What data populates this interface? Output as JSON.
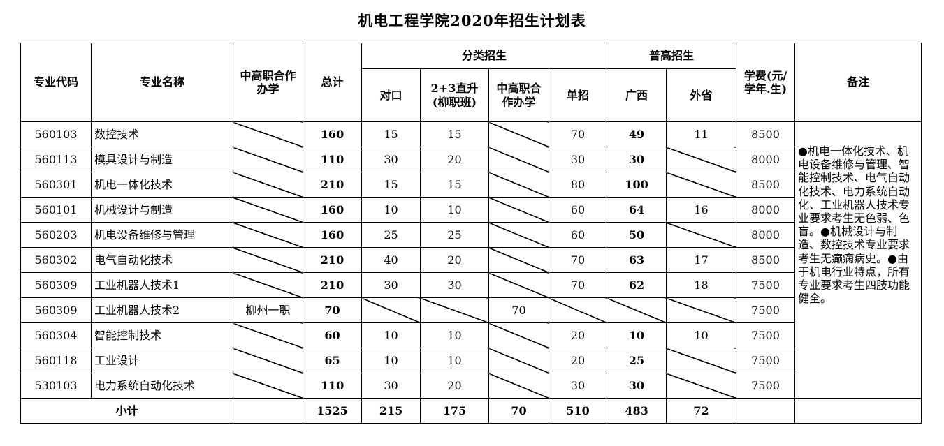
{
  "title": "机电工程学院2020年招生计划表",
  "headers": {
    "code": "专业代码",
    "name": "专业名称",
    "coop": "中高职合作办学",
    "total": "总计",
    "category_group": "分类招生",
    "duikou": "对口",
    "zhisheng_line1": "2+3直升",
    "zhisheng_line2": "(柳职班)",
    "coop_sub": "中高职合作办学",
    "danzhao": "单招",
    "general_group": "普高招生",
    "guangxi": "广西",
    "waisheng": "外省",
    "fee": "学费(元/学年.生)",
    "remarks": "备注"
  },
  "rows": [
    {
      "code": "560103",
      "name": "数控技术",
      "coop": "",
      "total": "160",
      "duikou": "15",
      "zhisheng": "15",
      "coop_sub": "",
      "danzhao": "70",
      "guangxi": "49",
      "waisheng": "11",
      "fee": "8500"
    },
    {
      "code": "560113",
      "name": "模具设计与制造",
      "coop": "",
      "total": "110",
      "duikou": "30",
      "zhisheng": "20",
      "coop_sub": "",
      "danzhao": "30",
      "guangxi": "30",
      "waisheng": "",
      "fee": "8000"
    },
    {
      "code": "560301",
      "name": "机电一体化技术",
      "coop": "",
      "total": "210",
      "duikou": "15",
      "zhisheng": "15",
      "coop_sub": "",
      "danzhao": "80",
      "guangxi": "100",
      "waisheng": "",
      "fee": "8500"
    },
    {
      "code": "560101",
      "name": "机械设计与制造",
      "coop": "",
      "total": "160",
      "duikou": "10",
      "zhisheng": "10",
      "coop_sub": "",
      "danzhao": "60",
      "guangxi": "64",
      "waisheng": "16",
      "fee": "8000"
    },
    {
      "code": "560203",
      "name": "机电设备维修与管理",
      "coop": "",
      "total": "160",
      "duikou": "25",
      "zhisheng": "25",
      "coop_sub": "",
      "danzhao": "60",
      "guangxi": "50",
      "waisheng": "",
      "fee": "8000"
    },
    {
      "code": "560302",
      "name": "电气自动化技术",
      "coop": "",
      "total": "210",
      "duikou": "40",
      "zhisheng": "20",
      "coop_sub": "",
      "danzhao": "70",
      "guangxi": "63",
      "waisheng": "17",
      "fee": "8500"
    },
    {
      "code": "560309",
      "name": "工业机器人技术1",
      "coop": "",
      "total": "210",
      "duikou": "30",
      "zhisheng": "30",
      "coop_sub": "",
      "danzhao": "70",
      "guangxi": "62",
      "waisheng": "18",
      "fee": "7500"
    },
    {
      "code": "560309",
      "name": "工业机器人技术2",
      "coop": "柳州一职",
      "total": "70",
      "duikou": "",
      "zhisheng": "",
      "coop_sub": "70",
      "danzhao": "",
      "guangxi": "",
      "waisheng": "",
      "fee": "7500"
    },
    {
      "code": "560304",
      "name": "智能控制技术",
      "coop": "",
      "total": "60",
      "duikou": "10",
      "zhisheng": "10",
      "coop_sub": "",
      "danzhao": "20",
      "guangxi": "10",
      "waisheng": "10",
      "fee": "7500"
    },
    {
      "code": "560118",
      "name": "工业设计",
      "coop": "",
      "total": "65",
      "duikou": "10",
      "zhisheng": "10",
      "coop_sub": "",
      "danzhao": "20",
      "guangxi": "25",
      "waisheng": "",
      "fee": "7500"
    },
    {
      "code": "530103",
      "name": "电力系统自动化技术",
      "coop": "",
      "total": "110",
      "duikou": "30",
      "zhisheng": "20",
      "coop_sub": "",
      "danzhao": "30",
      "guangxi": "30",
      "waisheng": "",
      "fee": "7500"
    }
  ],
  "remarks_text": "●机电一体化技术、机电设备维修与管理、智能控制技术、电气自动化技术、电力系统自动化、工业机器人技术专业要求考生无色弱、色盲。●机械设计与制造、数控技术专业要求考生无癫痫病史。●由于机电行业特点，所有专业要求考生四肢功能健全。",
  "subtotal": {
    "label": "小计",
    "total": "1525",
    "duikou": "215",
    "zhisheng": "175",
    "coop_sub": "70",
    "danzhao": "510",
    "guangxi": "483",
    "waisheng": "72"
  }
}
